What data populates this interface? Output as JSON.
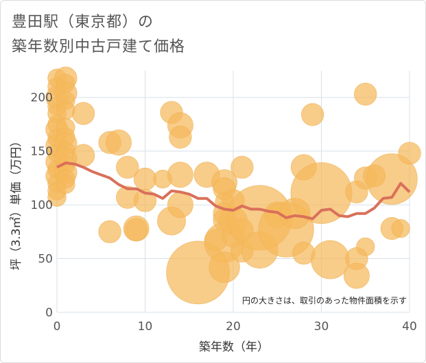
{
  "chart_data": {
    "type": "scatter",
    "title_lines": [
      "豊田駅（東京都）の",
      "築年数別中古戸建て価格"
    ],
    "xlabel": "築年数（年）",
    "ylabel": "坪（3.3㎡）単価（万円）",
    "xlim": [
      0,
      40
    ],
    "ylim": [
      0,
      225
    ],
    "xticks": [
      0,
      10,
      20,
      30,
      40
    ],
    "yticks": [
      0,
      50,
      100,
      150,
      200
    ],
    "grid": true,
    "note": "円の大きさは、取引のあった物件面積を示す",
    "colors": {
      "bubble": "#f5b95c",
      "line": "#d9705a",
      "grid": "#d7e0ea"
    },
    "bubbles": [
      {
        "x": 0,
        "y": 218,
        "s": 1
      },
      {
        "x": 0,
        "y": 210,
        "s": 1
      },
      {
        "x": 0,
        "y": 200,
        "s": 2
      },
      {
        "x": 0,
        "y": 192,
        "s": 1
      },
      {
        "x": 0,
        "y": 185,
        "s": 1
      },
      {
        "x": 0,
        "y": 175,
        "s": 1
      },
      {
        "x": 0,
        "y": 170,
        "s": 2
      },
      {
        "x": 0,
        "y": 162,
        "s": 1
      },
      {
        "x": 0,
        "y": 155,
        "s": 2
      },
      {
        "x": 0,
        "y": 148,
        "s": 1
      },
      {
        "x": 0,
        "y": 140,
        "s": 2
      },
      {
        "x": 0,
        "y": 133,
        "s": 1
      },
      {
        "x": 0,
        "y": 127,
        "s": 2
      },
      {
        "x": 0,
        "y": 120,
        "s": 1
      },
      {
        "x": 0,
        "y": 113,
        "s": 1
      },
      {
        "x": 0,
        "y": 107,
        "s": 1
      },
      {
        "x": 1,
        "y": 218,
        "s": 2
      },
      {
        "x": 1,
        "y": 213,
        "s": 1
      },
      {
        "x": 1,
        "y": 204,
        "s": 2
      },
      {
        "x": 1,
        "y": 197,
        "s": 1
      },
      {
        "x": 1,
        "y": 188,
        "s": 1
      },
      {
        "x": 1,
        "y": 172,
        "s": 1
      },
      {
        "x": 1,
        "y": 163,
        "s": 1
      },
      {
        "x": 1,
        "y": 157,
        "s": 2
      },
      {
        "x": 1,
        "y": 150,
        "s": 1
      },
      {
        "x": 1,
        "y": 143,
        "s": 2
      },
      {
        "x": 1,
        "y": 137,
        "s": 1
      },
      {
        "x": 1,
        "y": 130,
        "s": 2
      },
      {
        "x": 1,
        "y": 124,
        "s": 1
      },
      {
        "x": 1,
        "y": 119,
        "s": 1
      },
      {
        "x": 3,
        "y": 185,
        "s": 2
      },
      {
        "x": 3,
        "y": 146,
        "s": 2
      },
      {
        "x": 6,
        "y": 158,
        "s": 2
      },
      {
        "x": 6,
        "y": 75,
        "s": 2
      },
      {
        "x": 7,
        "y": 158,
        "s": 3
      },
      {
        "x": 8,
        "y": 135,
        "s": 2
      },
      {
        "x": 8,
        "y": 107,
        "s": 2
      },
      {
        "x": 9,
        "y": 78,
        "s": 3
      },
      {
        "x": 9,
        "y": 77,
        "s": 2
      },
      {
        "x": 10,
        "y": 124,
        "s": 2
      },
      {
        "x": 10,
        "y": 104,
        "s": 2
      },
      {
        "x": 12,
        "y": 124,
        "s": 1
      },
      {
        "x": 13,
        "y": 186,
        "s": 2
      },
      {
        "x": 13,
        "y": 85,
        "s": 4
      },
      {
        "x": 14,
        "y": 174,
        "s": 3
      },
      {
        "x": 14,
        "y": 163,
        "s": 2
      },
      {
        "x": 14,
        "y": 128,
        "s": 3
      },
      {
        "x": 14,
        "y": 100,
        "s": 3
      },
      {
        "x": 16,
        "y": 37,
        "s": 30
      },
      {
        "x": 17,
        "y": 128,
        "s": 3
      },
      {
        "x": 18,
        "y": 67,
        "s": 2
      },
      {
        "x": 19,
        "y": 121,
        "s": 3
      },
      {
        "x": 19,
        "y": 115,
        "s": 2
      },
      {
        "x": 19,
        "y": 103,
        "s": 1
      },
      {
        "x": 19,
        "y": 92,
        "s": 2
      },
      {
        "x": 19,
        "y": 86,
        "s": 2
      },
      {
        "x": 19,
        "y": 65,
        "s": 10
      },
      {
        "x": 19,
        "y": 42,
        "s": 5
      },
      {
        "x": 20,
        "y": 104,
        "s": 2
      },
      {
        "x": 20,
        "y": 85,
        "s": 4
      },
      {
        "x": 20,
        "y": 71,
        "s": 2
      },
      {
        "x": 21,
        "y": 135,
        "s": 2
      },
      {
        "x": 21,
        "y": 77,
        "s": 2
      },
      {
        "x": 21,
        "y": 57,
        "s": 2
      },
      {
        "x": 23,
        "y": 88,
        "s": 32
      },
      {
        "x": 23,
        "y": 58,
        "s": 8
      },
      {
        "x": 25,
        "y": 91,
        "s": 3
      },
      {
        "x": 26,
        "y": 77,
        "s": 22
      },
      {
        "x": 27,
        "y": 92,
        "s": 5
      },
      {
        "x": 28,
        "y": 135,
        "s": 3
      },
      {
        "x": 28,
        "y": 55,
        "s": 2
      },
      {
        "x": 29,
        "y": 184,
        "s": 2
      },
      {
        "x": 30,
        "y": 111,
        "s": 28
      },
      {
        "x": 31,
        "y": 49,
        "s": 9
      },
      {
        "x": 34,
        "y": 112,
        "s": 2
      },
      {
        "x": 34,
        "y": 50,
        "s": 2
      },
      {
        "x": 34,
        "y": 34,
        "s": 3
      },
      {
        "x": 35,
        "y": 203,
        "s": 2
      },
      {
        "x": 35,
        "y": 125,
        "s": 2
      },
      {
        "x": 35,
        "y": 61,
        "s": 1
      },
      {
        "x": 36,
        "y": 127,
        "s": 2
      },
      {
        "x": 38,
        "y": 124,
        "s": 18
      },
      {
        "x": 38,
        "y": 78,
        "s": 2
      },
      {
        "x": 39,
        "y": 78,
        "s": 1
      },
      {
        "x": 40,
        "y": 148,
        "s": 2
      }
    ],
    "trend_x": [
      0,
      1,
      2,
      3,
      4,
      5,
      6,
      7,
      8,
      9,
      10,
      11,
      12,
      13,
      14,
      15,
      16,
      17,
      18,
      19,
      20,
      21,
      22,
      23,
      24,
      25,
      26,
      27,
      28,
      29,
      30,
      31,
      32,
      33,
      34,
      35,
      36,
      37,
      38,
      39,
      40
    ],
    "trend_y": [
      135,
      139,
      138,
      135,
      131,
      128,
      125,
      119,
      115,
      115,
      111,
      110,
      106,
      113,
      112,
      110,
      106,
      106,
      99,
      96,
      95,
      99,
      96,
      96,
      94,
      93,
      88,
      90,
      89,
      87,
      95,
      96,
      90,
      89,
      92,
      92,
      97,
      106,
      107,
      120,
      112
    ]
  }
}
